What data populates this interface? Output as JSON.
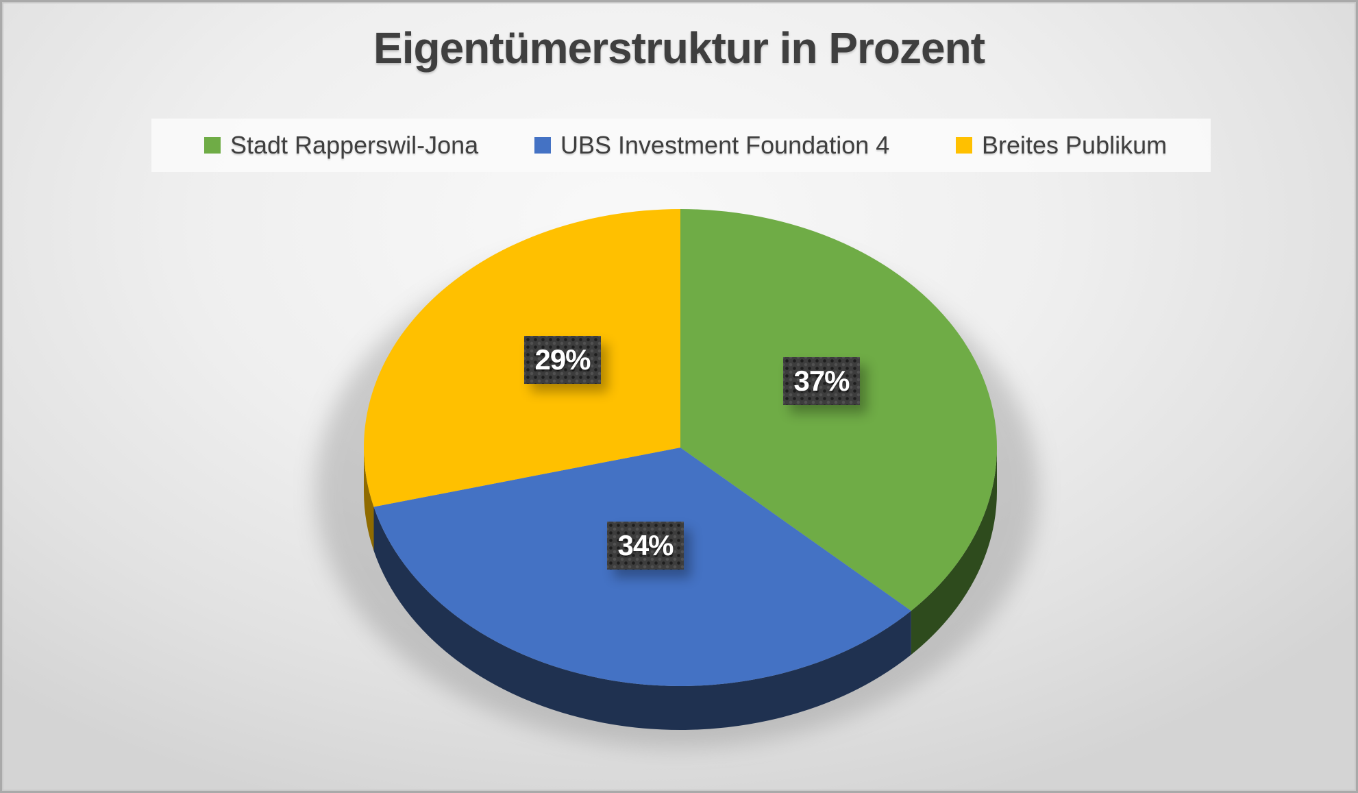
{
  "title": "Eigentümerstruktur in Prozent",
  "chart_data": {
    "type": "pie",
    "title": "Eigentümerstruktur in Prozent",
    "effect": "3d",
    "start_angle_deg": 0,
    "direction": "clockwise",
    "legend_position": "top",
    "data_labels": "percent-inside-boxes",
    "background": "light-gray-gradient",
    "slices": [
      {
        "label": "Stadt Rapperswil-Jona",
        "value": 37,
        "display": "37%",
        "color": "#6FAC46",
        "side_color": "#2E4B1D"
      },
      {
        "label": "UBS Investment Foundation 4",
        "value": 34,
        "display": "34%",
        "color": "#4472C4",
        "side_color": "#1F3150"
      },
      {
        "label": "Breites Publikum",
        "value": 29,
        "display": "29%",
        "color": "#FFC000",
        "side_color": "#8F6B00"
      }
    ],
    "label_box_color": "#3d3d3d",
    "label_text_color": "#ffffff"
  }
}
